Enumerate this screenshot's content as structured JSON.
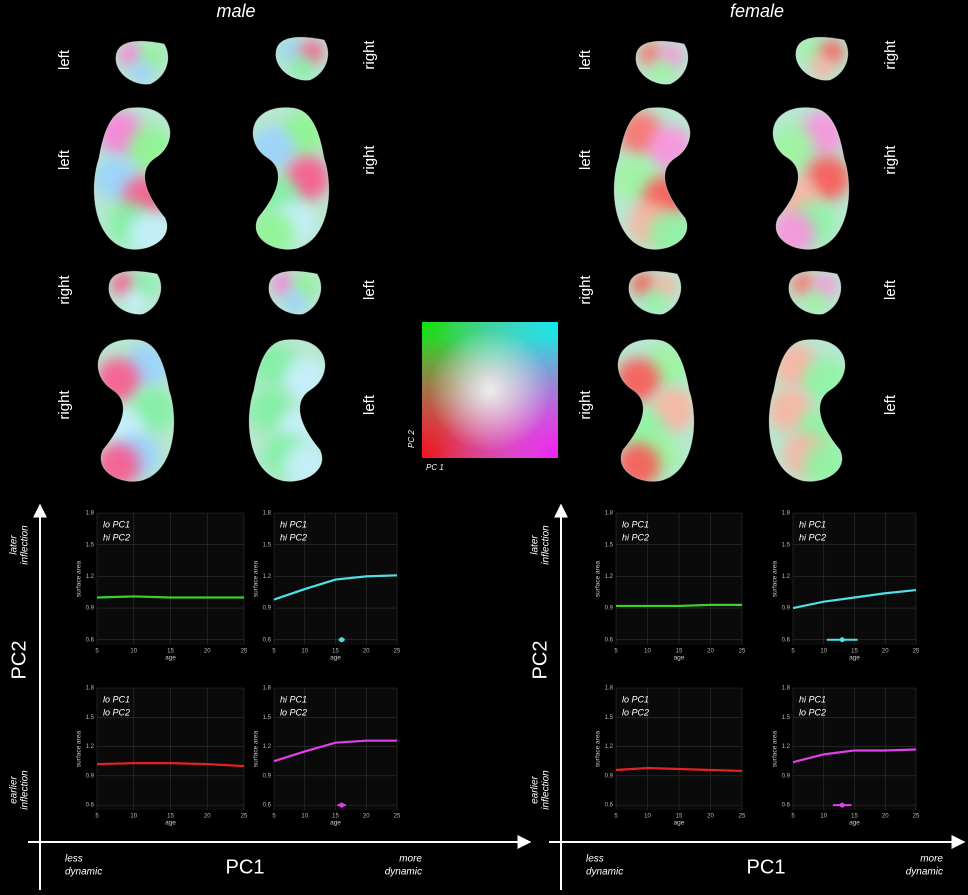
{
  "figure": {
    "panels": [
      {
        "title": "male",
        "view_labels": [
          "left",
          "right",
          "left",
          "right",
          "right",
          "left",
          "right",
          "left"
        ],
        "y_axis": "PC2",
        "y_high": [
          "later",
          "inflection"
        ],
        "y_low": [
          "earlier",
          "inflection"
        ],
        "x_axis": "PC1",
        "x_low": [
          "less",
          "dynamic"
        ],
        "x_high": [
          "more",
          "dynamic"
        ]
      },
      {
        "title": "female",
        "view_labels": [
          "left",
          "right",
          "left",
          "right",
          "right",
          "left",
          "right",
          "left"
        ],
        "y_axis": "PC2",
        "y_high": [
          "later",
          "inflection"
        ],
        "y_low": [
          "earlier",
          "inflection"
        ],
        "x_axis": "PC1",
        "x_low": [
          "less",
          "dynamic"
        ],
        "x_high": [
          "more",
          "dynamic"
        ]
      }
    ],
    "colormap": {
      "x_label": "PC 1",
      "y_label": "PC 2"
    }
  },
  "chart_data": [
    {
      "type": "line",
      "labels": [
        "lo PC1",
        "hi PC2"
      ],
      "xlabel": "age",
      "ylabel": "surface area",
      "color": "#3ad12f",
      "x": [
        5,
        10,
        15,
        20,
        25
      ],
      "values": [
        1.0,
        1.01,
        1.0,
        1.0,
        1.0
      ],
      "xlim": [
        5,
        25
      ],
      "xticks": [
        5,
        10,
        15,
        20,
        25
      ],
      "ylim": [
        0.55,
        1.8
      ],
      "yticks": [
        0.6,
        0.9,
        1.2,
        1.5,
        1.8
      ],
      "grid": true
    },
    {
      "type": "line",
      "labels": [
        "hi PC1",
        "hi PC2"
      ],
      "xlabel": "age",
      "ylabel": "surface area",
      "color": "#4fe0e6",
      "x": [
        5,
        10,
        15,
        20,
        25
      ],
      "values": [
        0.98,
        1.08,
        1.17,
        1.2,
        1.21
      ],
      "inflection": {
        "x": 16,
        "y": 0.6,
        "xerr": 0.5
      },
      "xlim": [
        5,
        25
      ],
      "xticks": [
        5,
        10,
        15,
        20,
        25
      ],
      "ylim": [
        0.55,
        1.8
      ],
      "yticks": [
        0.6,
        0.9,
        1.2,
        1.5,
        1.8
      ],
      "grid": true
    },
    {
      "type": "line",
      "labels": [
        "lo PC1",
        "lo PC2"
      ],
      "xlabel": "age",
      "ylabel": "surface area",
      "color": "#e52222",
      "x": [
        5,
        10,
        15,
        20,
        25
      ],
      "values": [
        1.02,
        1.03,
        1.03,
        1.02,
        1.0
      ],
      "xlim": [
        5,
        25
      ],
      "xticks": [
        5,
        10,
        15,
        20,
        25
      ],
      "ylim": [
        0.55,
        1.8
      ],
      "yticks": [
        0.6,
        0.9,
        1.2,
        1.5,
        1.8
      ],
      "grid": true
    },
    {
      "type": "line",
      "labels": [
        "hi PC1",
        "lo PC2"
      ],
      "xlabel": "age",
      "ylabel": "surface area",
      "color": "#e040e8",
      "x": [
        5,
        10,
        15,
        20,
        25
      ],
      "values": [
        1.05,
        1.15,
        1.24,
        1.26,
        1.26
      ],
      "inflection": {
        "x": 16,
        "y": 0.6,
        "xerr": 0.7
      },
      "xlim": [
        5,
        25
      ],
      "xticks": [
        5,
        10,
        15,
        20,
        25
      ],
      "ylim": [
        0.55,
        1.8
      ],
      "yticks": [
        0.6,
        0.9,
        1.2,
        1.5,
        1.8
      ],
      "grid": true
    },
    {
      "type": "line",
      "labels": [
        "lo PC1",
        "hi PC2"
      ],
      "xlabel": "age",
      "ylabel": "surface area",
      "color": "#3ad12f",
      "x": [
        5,
        10,
        15,
        20,
        25
      ],
      "values": [
        0.92,
        0.92,
        0.92,
        0.93,
        0.93
      ],
      "xlim": [
        5,
        25
      ],
      "xticks": [
        5,
        10,
        15,
        20,
        25
      ],
      "ylim": [
        0.55,
        1.8
      ],
      "yticks": [
        0.6,
        0.9,
        1.2,
        1.5,
        1.8
      ],
      "grid": true
    },
    {
      "type": "line",
      "labels": [
        "hi PC1",
        "hi PC2"
      ],
      "xlabel": "age",
      "ylabel": "surface area",
      "color": "#4fe0e6",
      "x": [
        5,
        10,
        15,
        20,
        25
      ],
      "values": [
        0.9,
        0.96,
        1.0,
        1.04,
        1.07
      ],
      "inflection": {
        "x": 13,
        "y": 0.6,
        "xerr": 2.5
      },
      "xlim": [
        5,
        25
      ],
      "xticks": [
        5,
        10,
        15,
        20,
        25
      ],
      "ylim": [
        0.55,
        1.8
      ],
      "yticks": [
        0.6,
        0.9,
        1.2,
        1.5,
        1.8
      ],
      "grid": true
    },
    {
      "type": "line",
      "labels": [
        "lo PC1",
        "lo PC2"
      ],
      "xlabel": "age",
      "ylabel": "surface area",
      "color": "#e52222",
      "x": [
        5,
        10,
        15,
        20,
        25
      ],
      "values": [
        0.96,
        0.98,
        0.97,
        0.96,
        0.95
      ],
      "xlim": [
        5,
        25
      ],
      "xticks": [
        5,
        10,
        15,
        20,
        25
      ],
      "ylim": [
        0.55,
        1.8
      ],
      "yticks": [
        0.6,
        0.9,
        1.2,
        1.5,
        1.8
      ],
      "grid": true
    },
    {
      "type": "line",
      "labels": [
        "hi PC1",
        "lo PC2"
      ],
      "xlabel": "age",
      "ylabel": "surface area",
      "color": "#e040e8",
      "x": [
        5,
        10,
        15,
        20,
        25
      ],
      "values": [
        1.04,
        1.12,
        1.16,
        1.16,
        1.17
      ],
      "inflection": {
        "x": 13,
        "y": 0.6,
        "xerr": 1.5
      },
      "xlim": [
        5,
        25
      ],
      "xticks": [
        5,
        10,
        15,
        20,
        25
      ],
      "ylim": [
        0.55,
        1.8
      ],
      "yticks": [
        0.6,
        0.9,
        1.2,
        1.5,
        1.8
      ],
      "grid": true
    }
  ]
}
